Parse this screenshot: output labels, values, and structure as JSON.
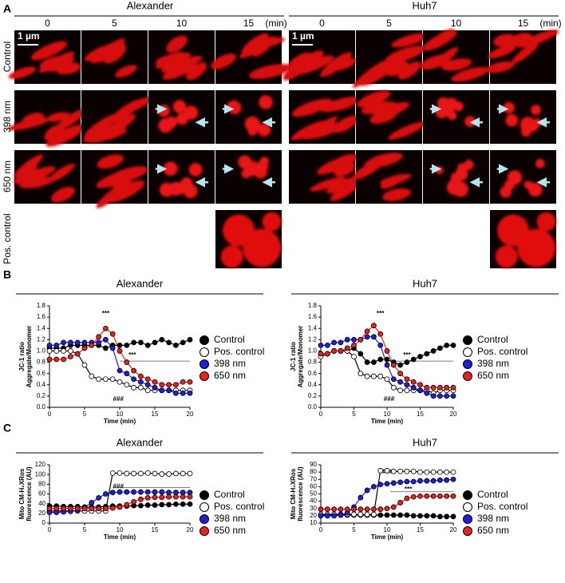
{
  "panel_a": {
    "label": "A",
    "cell_lines": [
      {
        "name": "Alexander",
        "times": [
          "0",
          "5",
          "10",
          "15"
        ],
        "unit": "(min)"
      },
      {
        "name": "Huh7",
        "times": [
          "0",
          "5",
          "10",
          "15"
        ],
        "unit": "(min)"
      }
    ],
    "rows": [
      "Control",
      "398 nm",
      "650 nm",
      "Pos. control"
    ],
    "scale_bar": "1 µm"
  },
  "panel_labels": [
    "B",
    "C"
  ],
  "chart_data": [
    {
      "type": "line",
      "title": "Alexander",
      "ylabel": [
        "JC-1 ratio",
        "Aggregate/Monomer"
      ],
      "xlabel": "Time (min)",
      "x": [
        0,
        1,
        2,
        3,
        4,
        5,
        6,
        7,
        8,
        9,
        10,
        11,
        12,
        13,
        14,
        15,
        16,
        17,
        18,
        19,
        20
      ],
      "xlim": [
        0,
        20
      ],
      "xticks": [
        0,
        5,
        10,
        15,
        20
      ],
      "ylim": [
        0,
        1.8
      ],
      "yticks": [
        {
          "value": 0,
          "label": "0.0"
        },
        0.2,
        0.4,
        0.6,
        0.8,
        {
          "value": 1,
          "label": "1.0"
        },
        1.2,
        1.4,
        1.6,
        1.8
      ],
      "legend": "right",
      "annotations": [
        "***",
        "***",
        "###"
      ],
      "series": [
        {
          "name": "Control",
          "color": "#000000",
          "values": [
            1.05,
            1.05,
            1.05,
            1.1,
            1.1,
            1.1,
            1.1,
            1.1,
            1.05,
            1.1,
            1.1,
            1.1,
            1.15,
            1.15,
            1.1,
            1.15,
            1.2,
            1.15,
            1.1,
            1.15,
            1.2
          ]
        },
        {
          "name": "Pos. control",
          "color": "#ffffff",
          "values": [
            1.0,
            1.0,
            1.0,
            1.0,
            0.95,
            0.75,
            0.55,
            0.5,
            0.5,
            0.5,
            0.45,
            0.4,
            0.35,
            0.35,
            0.3,
            0.3,
            0.3,
            0.3,
            0.3,
            0.3,
            0.3
          ]
        },
        {
          "name": "398 nm",
          "color": "#1f1fd6",
          "values": [
            1.1,
            1.1,
            1.15,
            1.15,
            1.15,
            1.15,
            1.15,
            1.15,
            1.2,
            1.05,
            0.65,
            0.6,
            0.5,
            0.45,
            0.4,
            0.35,
            0.3,
            0.3,
            0.25,
            0.25,
            0.25
          ]
        },
        {
          "name": "650 nm",
          "color": "#e8231f",
          "values": [
            0.85,
            0.85,
            0.85,
            0.9,
            0.95,
            1.05,
            1.1,
            1.25,
            1.4,
            1.3,
            1.0,
            0.8,
            0.65,
            0.55,
            0.5,
            0.45,
            0.4,
            0.4,
            0.4,
            0.45,
            0.45
          ]
        }
      ]
    },
    {
      "type": "line",
      "title": "Huh7",
      "ylabel": [
        "JC-1 ratio",
        "Aggregate/Monomer"
      ],
      "xlabel": "Time (min)",
      "x": [
        0,
        1,
        2,
        3,
        4,
        5,
        6,
        7,
        8,
        9,
        10,
        11,
        12,
        13,
        14,
        15,
        16,
        17,
        18,
        19,
        20
      ],
      "xlim": [
        0,
        20
      ],
      "xticks": [
        0,
        5,
        10,
        15,
        20
      ],
      "ylim": [
        0,
        1.8
      ],
      "yticks": [
        {
          "value": 0,
          "label": "0.0"
        },
        0.2,
        0.4,
        0.6,
        0.8,
        {
          "value": 1,
          "label": "1.0"
        },
        1.2,
        1.4,
        1.6,
        1.8
      ],
      "legend": "right",
      "annotations": [
        "***",
        "***",
        "###"
      ],
      "series": [
        {
          "name": "Control",
          "color": "#000000",
          "values": [
            0.95,
            0.95,
            1.0,
            1.0,
            1.0,
            1.05,
            0.95,
            0.8,
            0.8,
            0.85,
            0.85,
            0.8,
            0.75,
            0.8,
            0.85,
            0.9,
            0.95,
            1.0,
            1.05,
            1.1,
            1.1
          ]
        },
        {
          "name": "Pos. control",
          "color": "#ffffff",
          "values": [
            0.9,
            0.95,
            1.0,
            1.0,
            1.0,
            0.9,
            0.6,
            0.55,
            0.55,
            0.55,
            0.5,
            0.35,
            0.3,
            0.3,
            0.3,
            0.3,
            0.3,
            0.25,
            0.3,
            0.3,
            0.3
          ]
        },
        {
          "name": "398 nm",
          "color": "#1f1fd6",
          "values": [
            1.1,
            1.1,
            1.15,
            1.15,
            1.2,
            1.2,
            1.2,
            1.25,
            1.25,
            1.1,
            0.75,
            0.5,
            0.45,
            0.4,
            0.35,
            0.3,
            0.25,
            0.2,
            0.2,
            0.2,
            0.2
          ]
        },
        {
          "name": "650 nm",
          "color": "#e8231f",
          "values": [
            0.95,
            0.95,
            1.0,
            1.0,
            1.05,
            1.1,
            1.2,
            1.35,
            1.45,
            1.3,
            1.0,
            0.75,
            0.6,
            0.5,
            0.45,
            0.4,
            0.35,
            0.35,
            0.35,
            0.35,
            0.35
          ]
        }
      ]
    },
    {
      "type": "line",
      "title": "Alexander",
      "ylabel": [
        "Mito CM-H₂XRos",
        "fluorescence (AU)"
      ],
      "xlabel": "Time (min)",
      "x": [
        0,
        1,
        2,
        3,
        4,
        5,
        6,
        7,
        8,
        9,
        10,
        11,
        12,
        13,
        14,
        15,
        16,
        17,
        18,
        19,
        20
      ],
      "xlim": [
        0,
        20
      ],
      "xticks": [
        0,
        5,
        10,
        15,
        20
      ],
      "ylim": [
        0,
        120
      ],
      "yticks": [
        0,
        20,
        40,
        60,
        80,
        100,
        120
      ],
      "legend": "right",
      "annotations": [
        "###"
      ],
      "series": [
        {
          "name": "Control",
          "color": "#000000",
          "values": [
            35,
            35,
            34,
            34,
            34,
            33,
            33,
            33,
            34,
            35,
            35,
            35,
            36,
            36,
            37,
            37,
            38,
            38,
            39,
            39,
            39
          ]
        },
        {
          "name": "Pos. control",
          "color": "#ffffff",
          "values": [
            25,
            25,
            25,
            25,
            25,
            25,
            25,
            25,
            25,
            103,
            103,
            102,
            102,
            102,
            103,
            102,
            101,
            101,
            102,
            102,
            102
          ]
        },
        {
          "name": "398 nm",
          "color": "#1f1fd6",
          "values": [
            22,
            22,
            23,
            24,
            27,
            33,
            42,
            52,
            60,
            63,
            64,
            64,
            64,
            64,
            64,
            64,
            64,
            63,
            63,
            63,
            63
          ]
        },
        {
          "name": "650 nm",
          "color": "#e8231f",
          "values": [
            30,
            30,
            30,
            30,
            30,
            30,
            30,
            30,
            30,
            31,
            33,
            38,
            44,
            49,
            52,
            53,
            53,
            54,
            54,
            54,
            54
          ]
        }
      ]
    },
    {
      "type": "line",
      "title": "Huh7",
      "ylabel": [
        "Mito CM-H₂XRos",
        "fluorescence (AU)"
      ],
      "xlabel": "Time (min)",
      "x": [
        0,
        1,
        2,
        3,
        4,
        5,
        6,
        7,
        8,
        9,
        10,
        11,
        12,
        13,
        14,
        15,
        16,
        17,
        18,
        19,
        20
      ],
      "xlim": [
        0,
        20
      ],
      "xticks": [
        0,
        5,
        10,
        15,
        20
      ],
      "ylim": [
        10,
        90
      ],
      "yticks": [
        10,
        20,
        30,
        40,
        50,
        60,
        70,
        80,
        90
      ],
      "legend": "right",
      "annotations": [
        "###",
        "***"
      ],
      "series": [
        {
          "name": "Control",
          "color": "#000000",
          "values": [
            21,
            21,
            21,
            21,
            21,
            21,
            21,
            21,
            21,
            21,
            21,
            21,
            21,
            21,
            20,
            20,
            20,
            20,
            19,
            19,
            19
          ]
        },
        {
          "name": "Pos. control",
          "color": "#ffffff",
          "values": [
            22,
            22,
            22,
            22,
            22,
            22,
            22,
            22,
            22,
            82,
            82,
            81,
            81,
            81,
            81,
            80,
            80,
            80,
            80,
            80,
            80
          ]
        },
        {
          "name": "398 nm",
          "color": "#1f1fd6",
          "values": [
            20,
            20,
            20,
            21,
            24,
            32,
            45,
            55,
            60,
            63,
            64,
            65,
            66,
            67,
            67,
            68,
            68,
            68,
            69,
            69,
            70
          ]
        },
        {
          "name": "650 nm",
          "color": "#e8231f",
          "values": [
            29,
            29,
            29,
            29,
            29,
            29,
            29,
            29,
            29,
            29,
            30,
            32,
            38,
            44,
            46,
            47,
            47,
            47,
            47,
            47,
            47
          ]
        }
      ]
    }
  ]
}
